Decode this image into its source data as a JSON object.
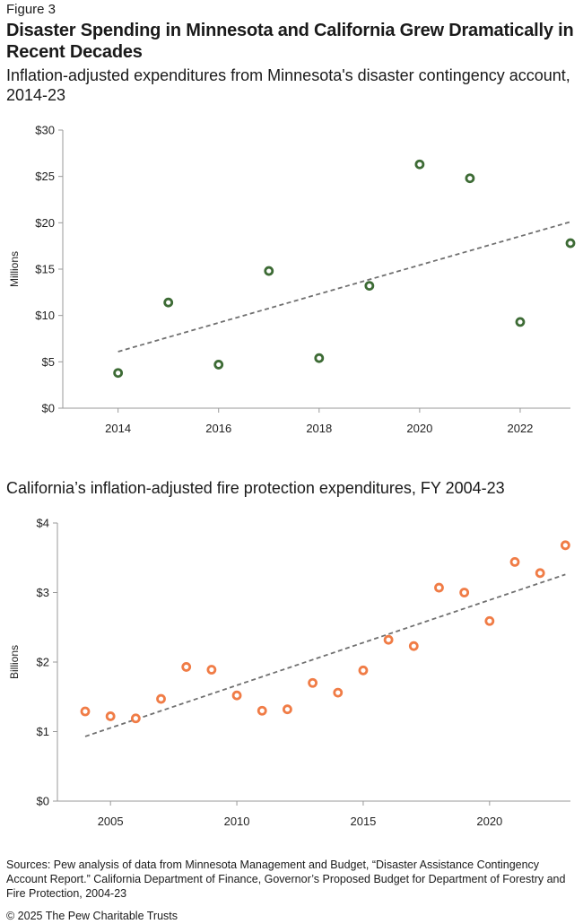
{
  "figure_label": "Figure 3",
  "title": "Disaster Spending in Minnesota and California Grew Dramatically in Recent Decades",
  "footer": {
    "sources": "Sources: Pew analysis of data from Minnesota Management and Budget, “Disaster Assistance Contingency Account Report.” California Department of Finance, Governor’s Proposed Budget for Department of Forestry and Fire Protection, 2004-23",
    "copyright": "© 2025 The Pew Charitable Trusts"
  },
  "colors": {
    "mn_points": "#3d6b35",
    "ca_points": "#f07c46",
    "trendline": "#707070",
    "axis": "#999999"
  },
  "chart_data": [
    {
      "type": "scatter",
      "title": "Inflation-adjusted expenditures from Minnesota's disaster contingency account, 2014-23",
      "xlabel": "",
      "ylabel": "Millions",
      "xlim": [
        2012.9,
        2023
      ],
      "ylim": [
        0,
        30
      ],
      "x_ticks": [
        2014,
        2016,
        2018,
        2020,
        2022
      ],
      "x_tick_labels": [
        "2014",
        "2016",
        "2018",
        "2020",
        "2022"
      ],
      "y_ticks": [
        0,
        5,
        10,
        15,
        20,
        25,
        30
      ],
      "y_tick_labels": [
        "$0",
        "$5",
        "$10",
        "$15",
        "$20",
        "$25",
        "$30"
      ],
      "grid": false,
      "x": [
        2014,
        2015,
        2016,
        2017,
        2018,
        2019,
        2020,
        2021,
        2022,
        2023
      ],
      "y": [
        3.8,
        11.4,
        4.7,
        14.8,
        5.4,
        13.2,
        26.3,
        24.8,
        9.3,
        17.8
      ],
      "trendline": {
        "style": "dashed",
        "x": [
          2014,
          2023
        ],
        "y": [
          6.1,
          20.1
        ]
      }
    },
    {
      "type": "scatter",
      "title": "California’s inflation-adjusted fire protection expenditures, FY 2004-23",
      "xlabel": "",
      "ylabel": "Billions",
      "xlim": [
        2002.9,
        2023.2
      ],
      "ylim": [
        0,
        4
      ],
      "x_ticks": [
        2005,
        2010,
        2015,
        2020
      ],
      "x_tick_labels": [
        "2005",
        "2010",
        "2015",
        "2020"
      ],
      "y_ticks": [
        0,
        1,
        2,
        3,
        4
      ],
      "y_tick_labels": [
        "$0",
        "$1",
        "$2",
        "$3",
        "$4"
      ],
      "grid": false,
      "x": [
        2004,
        2005,
        2006,
        2007,
        2008,
        2009,
        2010,
        2011,
        2012,
        2013,
        2014,
        2015,
        2016,
        2017,
        2018,
        2019,
        2020,
        2021,
        2022,
        2023
      ],
      "y": [
        1.29,
        1.22,
        1.19,
        1.47,
        1.93,
        1.89,
        1.52,
        1.3,
        1.32,
        1.7,
        1.56,
        1.88,
        2.32,
        2.23,
        3.07,
        3.0,
        2.59,
        3.44,
        3.28,
        3.68
      ],
      "trendline": {
        "style": "dashed",
        "x": [
          2004,
          2023
        ],
        "y": [
          0.93,
          3.26
        ]
      }
    }
  ]
}
